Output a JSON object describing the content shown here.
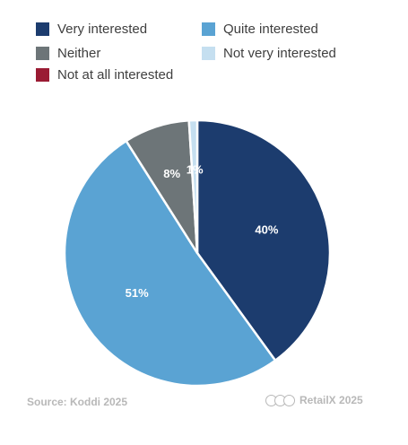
{
  "legend": [
    {
      "label": "Very interested",
      "color": "#1c3c6e"
    },
    {
      "label": "Quite interested",
      "color": "#5aa3d3"
    },
    {
      "label": "Neither",
      "color": "#6d7578"
    },
    {
      "label": "Not very interested",
      "color": "#c5dff0"
    },
    {
      "label": "Not at all interested",
      "color": "#9a1b33"
    }
  ],
  "chart_data": {
    "type": "pie",
    "categories": [
      "Very interested",
      "Not at all interested",
      "Quite interested",
      "Neither",
      "Not very interested"
    ],
    "values": [
      40,
      0,
      51,
      8,
      1
    ],
    "labels": [
      "40%",
      "",
      "51%",
      "8%",
      "1%"
    ],
    "colors": [
      "#1c3c6e",
      "#9a1b33",
      "#5aa3d3",
      "#6d7578",
      "#c5dff0"
    ],
    "start_angle_deg": 0,
    "direction": "clockwise"
  },
  "footer": {
    "source": "Source: Koddi 2025",
    "brand": "RetailX 2025",
    "license_icon": "creative-commons-icon"
  }
}
